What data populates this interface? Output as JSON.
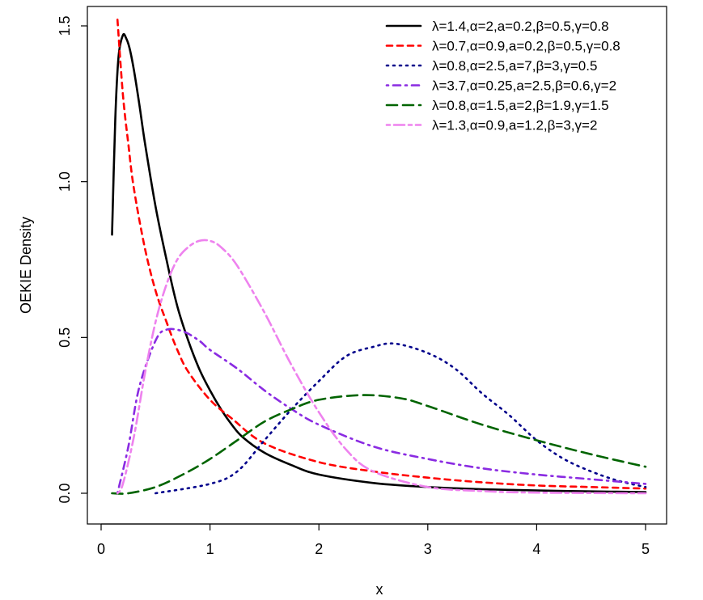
{
  "chart_data": {
    "type": "line",
    "xlabel": "x",
    "ylabel": "OEKIE Density",
    "xlim": [
      0,
      5.1
    ],
    "ylim": [
      -0.1,
      1.55
    ],
    "xticks": [
      0,
      1,
      2,
      3,
      4,
      5
    ],
    "yticks": [
      0.0,
      0.5,
      1.0,
      1.5
    ],
    "xtick_labels": [
      "0",
      "1",
      "2",
      "3",
      "4",
      "5"
    ],
    "ytick_labels": [
      "0.0",
      "0.5",
      "1.0",
      "1.5"
    ],
    "grid": false,
    "legend_position": "top-right",
    "series": [
      {
        "name": "λ=1.4,α=2,a=0.2,β=0.5,γ=0.8",
        "color": "#000000",
        "dash": "solid",
        "x": [
          0.1,
          0.13,
          0.16,
          0.2,
          0.23,
          0.26,
          0.3,
          0.35,
          0.4,
          0.5,
          0.6,
          0.7,
          0.8,
          0.9,
          1.0,
          1.1,
          1.2,
          1.3,
          1.5,
          1.75,
          2.0,
          2.5,
          3.0,
          3.5,
          4.0,
          4.5,
          5.0
        ],
        "y": [
          0.83,
          1.2,
          1.4,
          1.47,
          1.46,
          1.43,
          1.36,
          1.25,
          1.13,
          0.92,
          0.75,
          0.6,
          0.49,
          0.4,
          0.33,
          0.27,
          0.22,
          0.18,
          0.13,
          0.09,
          0.06,
          0.033,
          0.02,
          0.013,
          0.009,
          0.006,
          0.004
        ]
      },
      {
        "name": "λ=0.7,α=0.9,a=0.2,β=0.5,γ=0.8",
        "color": "#ff0000",
        "dash": "dashed",
        "x": [
          0.15,
          0.2,
          0.25,
          0.3,
          0.4,
          0.5,
          0.6,
          0.7,
          0.8,
          1.0,
          1.2,
          1.5,
          2.0,
          2.5,
          3.0,
          3.5,
          4.0,
          4.5,
          5.0
        ],
        "y": [
          1.52,
          1.28,
          1.12,
          0.98,
          0.79,
          0.65,
          0.55,
          0.46,
          0.39,
          0.3,
          0.24,
          0.16,
          0.1,
          0.07,
          0.05,
          0.035,
          0.025,
          0.02,
          0.015
        ]
      },
      {
        "name": "λ=0.8,α=2.5,a=7,β=3,γ=0.5",
        "color": "#00008b",
        "dash": "dotted",
        "x": [
          0.5,
          1.0,
          1.25,
          1.5,
          1.75,
          2.0,
          2.25,
          2.5,
          2.7,
          3.0,
          3.25,
          3.5,
          3.75,
          4.0,
          4.25,
          4.5,
          4.75,
          5.0
        ],
        "y": [
          0.0,
          0.03,
          0.07,
          0.17,
          0.27,
          0.36,
          0.44,
          0.47,
          0.48,
          0.45,
          0.4,
          0.32,
          0.25,
          0.17,
          0.11,
          0.07,
          0.04,
          0.02
        ]
      },
      {
        "name": "λ=3.7,α=0.25,a=2.5,β=0.6,γ=2",
        "color": "#8a2be2",
        "dash": "dotdash",
        "x": [
          0.15,
          0.25,
          0.35,
          0.5,
          0.6,
          0.75,
          0.9,
          1.0,
          1.25,
          1.5,
          1.75,
          2.0,
          2.5,
          3.0,
          3.5,
          4.0,
          4.5,
          5.0
        ],
        "y": [
          0.0,
          0.15,
          0.34,
          0.49,
          0.525,
          0.52,
          0.49,
          0.46,
          0.4,
          0.33,
          0.27,
          0.22,
          0.15,
          0.11,
          0.08,
          0.06,
          0.045,
          0.03
        ]
      },
      {
        "name": "λ=0.8,α=1.5,a=2,β=1.9,γ=1.5",
        "color": "#006400",
        "dash": "longdash",
        "x": [
          0.1,
          0.25,
          0.5,
          0.75,
          1.0,
          1.25,
          1.5,
          1.75,
          2.0,
          2.4,
          2.75,
          3.0,
          3.5,
          4.0,
          4.5,
          5.0
        ],
        "y": [
          0.0,
          0.0,
          0.02,
          0.06,
          0.11,
          0.17,
          0.23,
          0.27,
          0.3,
          0.315,
          0.305,
          0.28,
          0.22,
          0.17,
          0.125,
          0.085
        ]
      },
      {
        "name": "λ=1.3,α=0.9,a=1.2,β=3,γ=2",
        "color": "#ee82ee",
        "dash": "twodash",
        "x": [
          0.15,
          0.2,
          0.3,
          0.4,
          0.5,
          0.6,
          0.7,
          0.8,
          0.9,
          1.0,
          1.1,
          1.25,
          1.5,
          1.75,
          2.0,
          2.25,
          2.5,
          3.0,
          3.5,
          4.0,
          5.0
        ],
        "y": [
          0.0,
          0.03,
          0.18,
          0.38,
          0.55,
          0.67,
          0.75,
          0.79,
          0.81,
          0.81,
          0.79,
          0.73,
          0.58,
          0.41,
          0.26,
          0.14,
          0.07,
          0.02,
          0.007,
          0.002,
          0.0
        ]
      }
    ]
  }
}
